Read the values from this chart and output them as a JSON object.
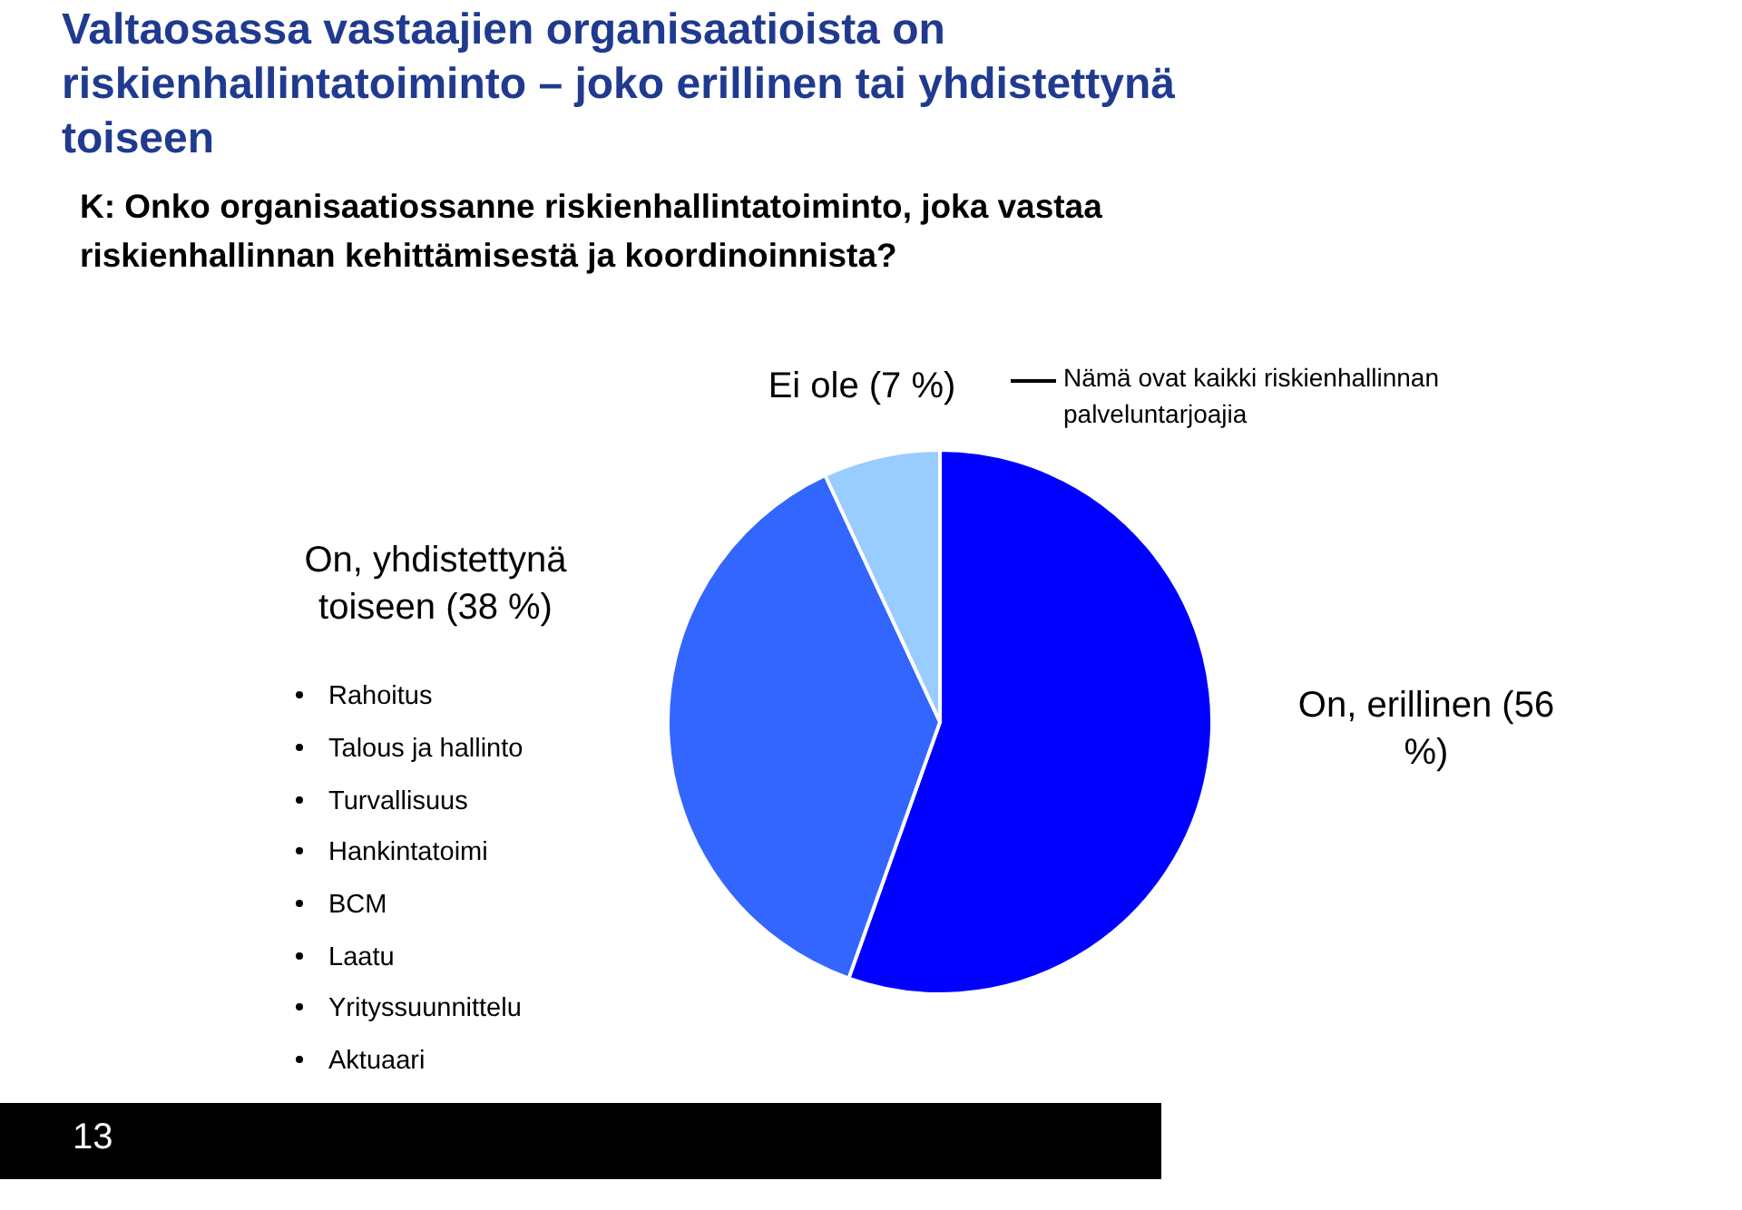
{
  "chart_data": {
    "type": "pie",
    "title": "Valtaosassa vastaajien organisaatioista on riskienhallintatoiminto – joko erillinen tai yhdistettynä toiseen",
    "subtitle": "K: Onko organisaatiossanne riskienhallintatoiminto, joka vastaa riskienhallinnan kehittämisestä ja koordinoinnista?",
    "categories": [
      "On, erillinen (56 %)",
      "On, yhdistettynä toiseen (38 %)",
      "Ei ole (7 %)"
    ],
    "values": [
      56,
      38,
      7
    ],
    "colors": [
      "#0000ff",
      "#3366ff",
      "#99ccff"
    ],
    "annotations": [
      "Nämä ovat kaikki riskienhallinnan palveluntarjoajia",
      "Rahoitus",
      "Talous ja hallinto",
      "Turvallisuus",
      "Hankintatoimi",
      "BCM",
      "Laatu",
      "Yrityssuunnittelu",
      "Aktuaari",
      "13"
    ]
  }
}
